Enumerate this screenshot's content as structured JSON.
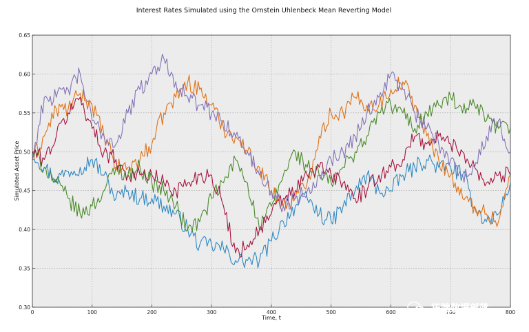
{
  "chart_data": {
    "type": "line",
    "title": "Interest Rates Simulated using the Ornstein Uhlenbeck Mean Reverting Model",
    "xlabel": "Time, t",
    "ylabel": "Simulated Asset Price",
    "xlim": [
      0,
      800
    ],
    "ylim": [
      0.3,
      0.65
    ],
    "xticks": [
      0,
      100,
      200,
      300,
      400,
      500,
      600,
      700,
      800
    ],
    "yticks": [
      0.3,
      0.35,
      0.4,
      0.45,
      0.5,
      0.55,
      0.6,
      0.65
    ],
    "xtick_labels": [
      "0",
      "100",
      "200",
      "300",
      "400",
      "500",
      "600",
      "700",
      "800"
    ],
    "ytick_labels": [
      "0.30",
      "0.35",
      "0.40",
      "0.45",
      "0.50",
      "0.55",
      "0.60",
      "0.65"
    ],
    "grid": true,
    "legend": "none",
    "background": "#ececec",
    "series": [
      {
        "color": "#2e88c2",
        "x": [
          0,
          20,
          40,
          60,
          80,
          100,
          120,
          140,
          160,
          180,
          200,
          220,
          240,
          260,
          280,
          300,
          320,
          340,
          360,
          380,
          400,
          420,
          440,
          460,
          480,
          500,
          520,
          540,
          560,
          580,
          600,
          620,
          640,
          660,
          680,
          700,
          720,
          740,
          760,
          780,
          800
        ],
        "values": [
          0.5,
          0.48,
          0.465,
          0.475,
          0.48,
          0.49,
          0.47,
          0.44,
          0.45,
          0.44,
          0.44,
          0.43,
          0.42,
          0.4,
          0.38,
          0.38,
          0.375,
          0.36,
          0.36,
          0.36,
          0.385,
          0.41,
          0.43,
          0.44,
          0.42,
          0.41,
          0.43,
          0.45,
          0.47,
          0.45,
          0.45,
          0.47,
          0.48,
          0.49,
          0.48,
          0.48,
          0.47,
          0.43,
          0.41,
          0.42,
          0.46
        ]
      },
      {
        "color": "#e07013",
        "x": [
          0,
          20,
          40,
          60,
          80,
          100,
          120,
          140,
          160,
          180,
          200,
          220,
          240,
          260,
          280,
          300,
          320,
          340,
          360,
          380,
          400,
          420,
          440,
          460,
          480,
          500,
          520,
          540,
          560,
          580,
          600,
          620,
          640,
          660,
          680,
          700,
          720,
          740,
          760,
          780,
          800
        ],
        "values": [
          0.49,
          0.52,
          0.555,
          0.555,
          0.575,
          0.56,
          0.52,
          0.48,
          0.48,
          0.49,
          0.51,
          0.55,
          0.57,
          0.59,
          0.58,
          0.56,
          0.53,
          0.52,
          0.5,
          0.48,
          0.45,
          0.43,
          0.44,
          0.46,
          0.52,
          0.55,
          0.55,
          0.57,
          0.56,
          0.56,
          0.58,
          0.59,
          0.56,
          0.52,
          0.49,
          0.47,
          0.44,
          0.43,
          0.42,
          0.41,
          0.47
        ]
      },
      {
        "color": "#4a8a2a",
        "x": [
          0,
          20,
          40,
          60,
          80,
          100,
          120,
          140,
          160,
          180,
          200,
          220,
          240,
          260,
          280,
          300,
          320,
          340,
          360,
          380,
          400,
          420,
          440,
          460,
          480,
          500,
          520,
          540,
          560,
          580,
          600,
          620,
          640,
          660,
          680,
          700,
          720,
          740,
          760,
          780,
          800
        ],
        "values": [
          0.5,
          0.48,
          0.46,
          0.44,
          0.42,
          0.43,
          0.45,
          0.48,
          0.47,
          0.48,
          0.46,
          0.45,
          0.43,
          0.4,
          0.41,
          0.44,
          0.46,
          0.49,
          0.46,
          0.4,
          0.43,
          0.47,
          0.5,
          0.48,
          0.47,
          0.46,
          0.48,
          0.5,
          0.52,
          0.55,
          0.56,
          0.55,
          0.53,
          0.55,
          0.56,
          0.57,
          0.55,
          0.56,
          0.54,
          0.53,
          0.53
        ]
      },
      {
        "color": "#a5133e",
        "x": [
          0,
          20,
          40,
          60,
          80,
          100,
          120,
          140,
          160,
          180,
          200,
          220,
          240,
          260,
          280,
          300,
          320,
          340,
          360,
          380,
          400,
          420,
          440,
          460,
          480,
          500,
          520,
          540,
          560,
          580,
          600,
          620,
          640,
          660,
          680,
          700,
          720,
          740,
          760,
          780,
          800
        ],
        "values": [
          0.5,
          0.49,
          0.52,
          0.55,
          0.57,
          0.53,
          0.5,
          0.49,
          0.47,
          0.47,
          0.47,
          0.46,
          0.45,
          0.46,
          0.47,
          0.47,
          0.43,
          0.37,
          0.38,
          0.4,
          0.42,
          0.44,
          0.45,
          0.47,
          0.48,
          0.47,
          0.46,
          0.44,
          0.45,
          0.47,
          0.48,
          0.49,
          0.52,
          0.51,
          0.52,
          0.51,
          0.5,
          0.48,
          0.46,
          0.47,
          0.47
        ]
      },
      {
        "color": "#8372b7",
        "x": [
          0,
          20,
          40,
          60,
          80,
          100,
          120,
          140,
          160,
          180,
          200,
          220,
          240,
          260,
          280,
          300,
          320,
          340,
          360,
          380,
          400,
          420,
          440,
          460,
          480,
          500,
          520,
          540,
          560,
          580,
          600,
          620,
          640,
          660,
          680,
          700,
          720,
          740,
          760,
          780,
          800
        ],
        "values": [
          0.49,
          0.57,
          0.57,
          0.58,
          0.6,
          0.54,
          0.52,
          0.51,
          0.55,
          0.58,
          0.6,
          0.62,
          0.59,
          0.57,
          0.56,
          0.55,
          0.54,
          0.52,
          0.5,
          0.47,
          0.45,
          0.43,
          0.44,
          0.45,
          0.47,
          0.49,
          0.5,
          0.52,
          0.55,
          0.57,
          0.6,
          0.58,
          0.55,
          0.53,
          0.51,
          0.49,
          0.47,
          0.48,
          0.52,
          0.54,
          0.5
        ]
      }
    ]
  },
  "watermark": {
    "brand": "拓端数据部落",
    "url": "https://blog.csdn.net/qq_19600291"
  }
}
